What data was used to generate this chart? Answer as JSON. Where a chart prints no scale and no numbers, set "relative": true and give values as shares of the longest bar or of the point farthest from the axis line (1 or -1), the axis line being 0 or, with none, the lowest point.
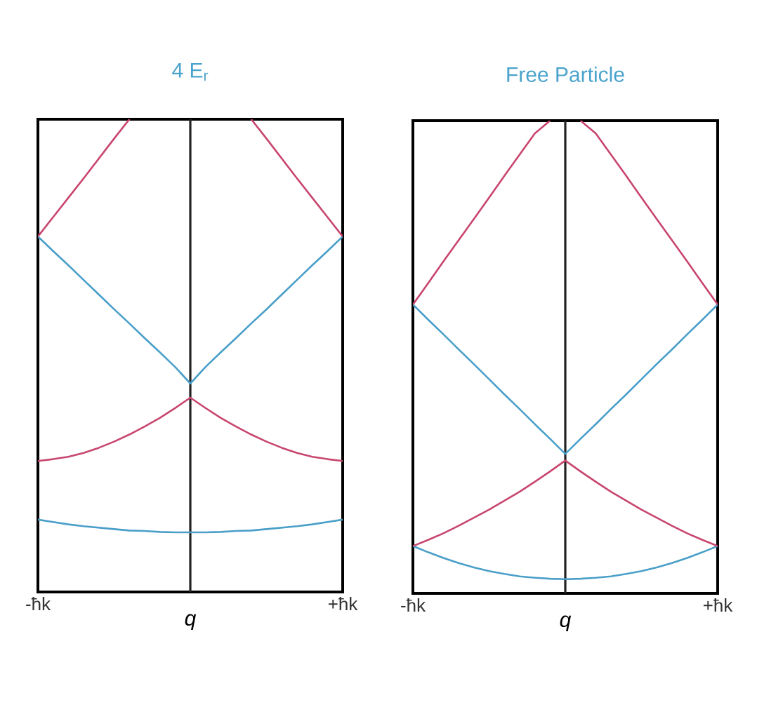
{
  "chart_data": [
    {
      "type": "line",
      "title": "4 E$_{r}$",
      "xlabel": "q",
      "relative": true,
      "categories": [
        "-ħk",
        null,
        null,
        null,
        null,
        null,
        null,
        null,
        null,
        null,
        null,
        null,
        null,
        null,
        null,
        null,
        null,
        null,
        null,
        null,
        "+ħk"
      ],
      "series": [
        {
          "color": "#4a9fc9",
          "values": [
            0.153,
            0.148,
            0.143,
            0.139,
            0.136,
            0.133,
            0.13,
            0.129,
            0.127,
            0.126,
            0.126,
            0.126,
            0.127,
            0.129,
            0.13,
            0.133,
            0.136,
            0.139,
            0.143,
            0.148,
            0.153
          ]
        },
        {
          "color": "#c8466e",
          "values": [
            0.277,
            0.281,
            0.286,
            0.294,
            0.305,
            0.318,
            0.333,
            0.35,
            0.368,
            0.389,
            0.411,
            0.389,
            0.368,
            0.35,
            0.333,
            0.318,
            0.305,
            0.294,
            0.286,
            0.281,
            0.277
          ]
        },
        {
          "color": "#4a9fc9",
          "values": [
            0.752,
            0.721,
            0.691,
            0.66,
            0.629,
            0.598,
            0.568,
            0.537,
            0.507,
            0.476,
            0.441,
            0.476,
            0.507,
            0.537,
            0.568,
            0.598,
            0.629,
            0.66,
            0.691,
            0.721,
            0.752
          ]
        },
        {
          "color": "#c8466e",
          "values": [
            0.752,
            0.793,
            0.834,
            0.875,
            0.917,
            0.959,
            1.0,
            null,
            null,
            null,
            null,
            null,
            null,
            null,
            1.0,
            0.959,
            0.917,
            0.875,
            0.834,
            0.793,
            0.752
          ]
        }
      ]
    },
    {
      "type": "line",
      "title": "Free Particle",
      "xlabel": "q",
      "relative": true,
      "categories": [
        "-ħk",
        null,
        null,
        null,
        null,
        null,
        null,
        null,
        null,
        null,
        null,
        null,
        null,
        null,
        null,
        null,
        null,
        null,
        null,
        null,
        "+ħk"
      ],
      "series": [
        {
          "color": "#4a9fc9",
          "values": [
            0.1,
            0.087,
            0.075,
            0.064,
            0.055,
            0.047,
            0.041,
            0.036,
            0.033,
            0.031,
            0.03,
            0.031,
            0.033,
            0.036,
            0.041,
            0.047,
            0.055,
            0.064,
            0.075,
            0.087,
            0.1
          ]
        },
        {
          "color": "#c8466e",
          "values": [
            0.1,
            0.113,
            0.127,
            0.143,
            0.16,
            0.177,
            0.196,
            0.215,
            0.236,
            0.258,
            0.281,
            0.258,
            0.236,
            0.215,
            0.196,
            0.177,
            0.16,
            0.143,
            0.127,
            0.113,
            0.1
          ]
        },
        {
          "color": "#4a9fc9",
          "values": [
            0.611,
            0.579,
            0.548,
            0.516,
            0.485,
            0.453,
            0.421,
            0.39,
            0.358,
            0.327,
            0.295,
            0.327,
            0.358,
            0.39,
            0.421,
            0.453,
            0.485,
            0.516,
            0.548,
            0.579,
            0.611
          ]
        },
        {
          "color": "#c8466e",
          "values": [
            0.611,
            0.656,
            0.702,
            0.747,
            0.792,
            0.837,
            0.883,
            0.928,
            0.973,
            1.0,
            null,
            1.0,
            0.973,
            0.928,
            0.883,
            0.837,
            0.792,
            0.747,
            0.702,
            0.656,
            0.611
          ]
        }
      ]
    }
  ]
}
